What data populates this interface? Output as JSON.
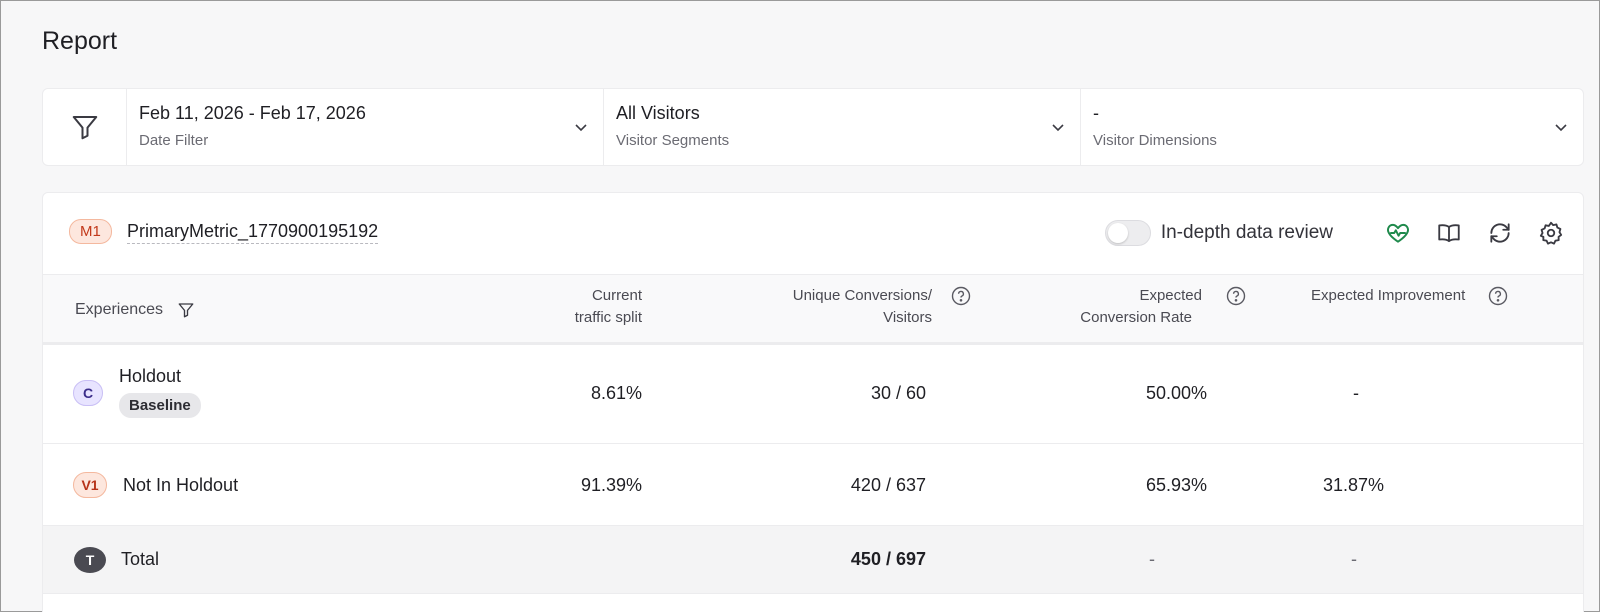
{
  "page": {
    "title": "Report"
  },
  "filters": {
    "date": {
      "value": "Feb 11, 2026 - Feb 17, 2026",
      "label": "Date Filter"
    },
    "segments": {
      "value": "All Visitors",
      "label": "Visitor Segments"
    },
    "dimensions": {
      "value": "-",
      "label": "Visitor Dimensions"
    }
  },
  "metric": {
    "badge": "M1",
    "name": "PrimaryMetric_1770900195192",
    "toggle_label": "In-depth data review",
    "toggle_on": false
  },
  "colors": {
    "accent_green": "#1f8a4c",
    "metric_badge_bg": "#fde7de",
    "control_badge_bg": "#e8e4ff"
  },
  "table": {
    "headers": {
      "experiences": "Experiences",
      "traffic_line1": "Current",
      "traffic_line2": "traffic split",
      "conversions_line1": "Unique Conversions/",
      "conversions_line2": "Visitors",
      "rate_line1": "Expected",
      "rate_line2": "Conversion Rate",
      "improvement": "Expected Improvement"
    },
    "rows": [
      {
        "badge": "C",
        "name": "Holdout",
        "tag": "Baseline",
        "traffic": "8.61%",
        "conversions": "30 / 60",
        "rate": "50.00%",
        "improvement": "-"
      },
      {
        "badge": "V1",
        "name": "Not In Holdout",
        "traffic": "91.39%",
        "conversions": "420 / 637",
        "rate": "65.93%",
        "improvement": "31.87%"
      }
    ],
    "total": {
      "badge": "T",
      "name": "Total",
      "conversions": "450 / 697",
      "rate": "-",
      "improvement": "-"
    }
  }
}
